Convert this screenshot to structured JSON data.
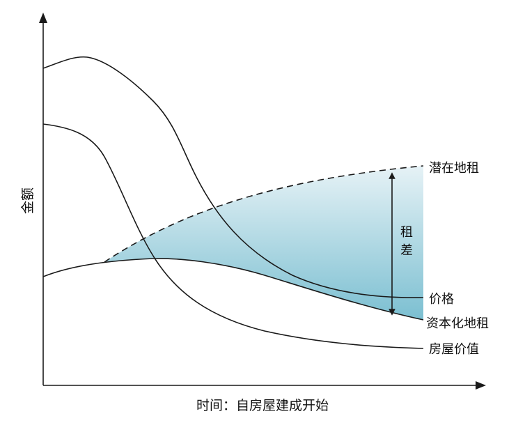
{
  "diagram": {
    "y_axis_label": "金额",
    "x_axis_label": "时间：自房屋建成开始",
    "curves": {
      "potential_rent": "潜在地租",
      "price": "价格",
      "capitalized_rent": "资本化地租",
      "house_value": "房屋价值"
    },
    "rent_gap_label_line1": "租",
    "rent_gap_label_line2": "差"
  },
  "colors": {
    "fill_top": "#e6f2f6",
    "fill_bottom": "#7bbfd1",
    "line": "#1a1a1a"
  }
}
